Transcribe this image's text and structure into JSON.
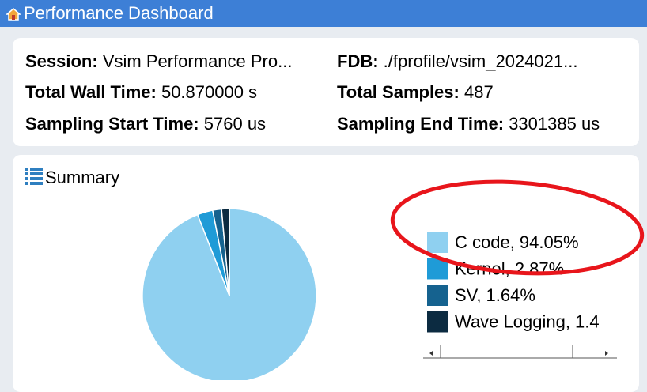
{
  "header": {
    "title": "Performance Dashboard"
  },
  "info": {
    "session": {
      "label": "Session:",
      "value": "Vsim Performance Pro..."
    },
    "fdb": {
      "label": "FDB:",
      "value": "./fprofile/vsim_2024021..."
    },
    "wall_time": {
      "label": "Total Wall Time:",
      "value": "50.870000 s"
    },
    "samples": {
      "label": "Total Samples:",
      "value": "487"
    },
    "start": {
      "label": "Sampling Start Time:",
      "value": "5760 us"
    },
    "end": {
      "label": "Sampling End Time:",
      "value": "3301385 us"
    }
  },
  "summary": {
    "title": "Summary",
    "chart": {
      "type": "pie",
      "labels": [
        "C code, 94.05%",
        "Kernel, 2.87%",
        "SV, 1.64%",
        "Wave Logging, 1.4"
      ],
      "values": [
        94.05,
        2.87,
        1.64,
        1.44
      ],
      "colors": [
        "#8fd0f0",
        "#1f9bd7",
        "#15628f",
        "#0c2b41"
      ]
    }
  }
}
